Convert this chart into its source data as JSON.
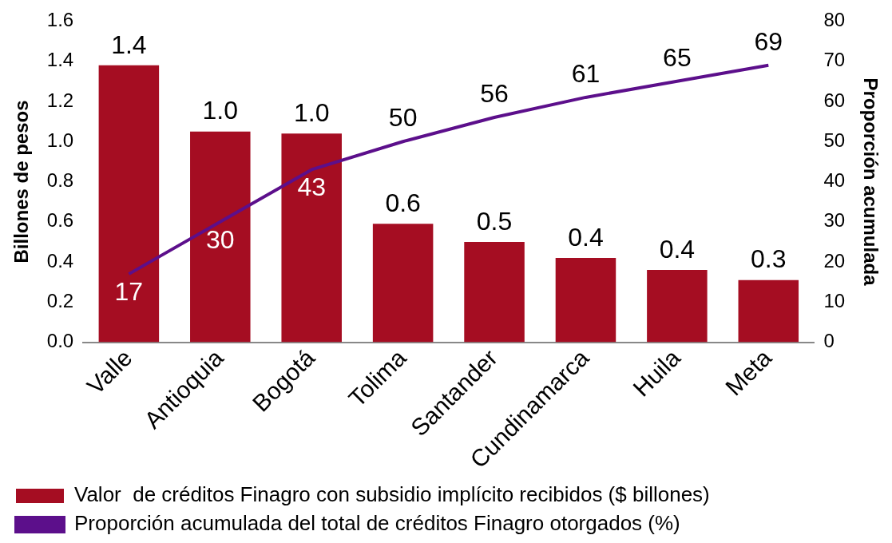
{
  "chart_data": {
    "type": "bar",
    "ylabel": "Billones de pesos",
    "y2label": "Proporción acumulada",
    "categories": [
      "Valle",
      "Antioquia",
      "Bogotá",
      "Tolima",
      "Santander",
      "Cundinamarca",
      "Huila",
      "Meta"
    ],
    "series": [
      {
        "name": "Valor  de créditos Finagro con subsidio implícito recibidos ($ billones)",
        "color": "#a50d22",
        "values": [
          1.38,
          1.05,
          1.04,
          0.59,
          0.5,
          0.42,
          0.36,
          0.31
        ],
        "value_labels": [
          "1.4",
          "1.0",
          "1.0",
          "0.6",
          "0.5",
          "0.4",
          "0.4",
          "0.3"
        ]
      },
      {
        "name": "Proporción acumulada del total de créditos Finagro otorgados (%)",
        "type": "line",
        "axis": "y2",
        "color": "#5c0f8b",
        "values": [
          17,
          30,
          43,
          50,
          56,
          61,
          65,
          69
        ],
        "value_labels": [
          "17",
          "30",
          "43",
          "50",
          "56",
          "61",
          "65",
          "69"
        ]
      }
    ],
    "ylim": [
      0,
      1.6
    ],
    "yticks": [
      {
        "value": 0,
        "label": "0.0"
      },
      {
        "value": 0.2,
        "label": "0.2"
      },
      {
        "value": 0.4,
        "label": "0.4"
      },
      {
        "value": 0.6,
        "label": "0.6"
      },
      {
        "value": 0.8,
        "label": "0.8"
      },
      {
        "value": 1,
        "label": "1.0"
      },
      {
        "value": 1.2,
        "label": "1.2"
      },
      {
        "value": 1.4,
        "label": "1.4"
      },
      {
        "value": 1.6,
        "label": "1.6"
      }
    ],
    "y2lim": [
      0,
      80
    ],
    "y2ticks": [
      0,
      10,
      20,
      30,
      40,
      50,
      60,
      70,
      80
    ],
    "grid": false,
    "legend": "bottom left",
    "marker": "none",
    "line_style": "solid"
  }
}
